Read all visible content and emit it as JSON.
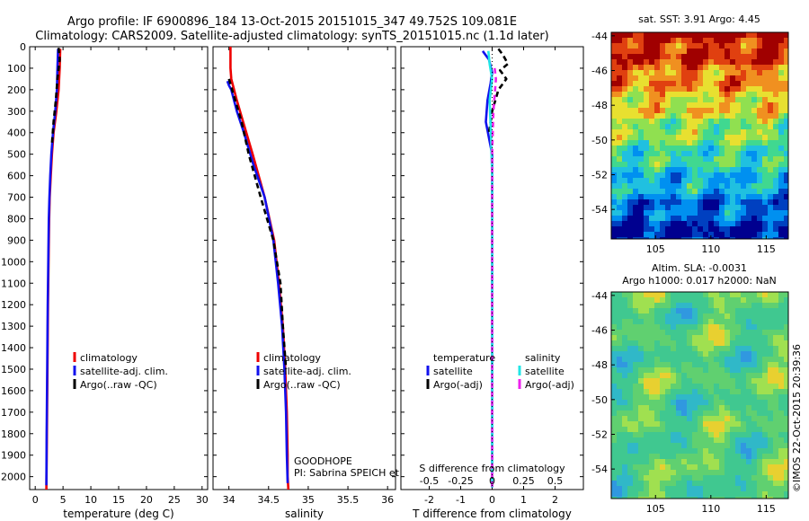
{
  "header": {
    "title_line1": "Argo profile: IF 6900896_184 13-Oct-2015 20151015_347 49.752S 109.081E",
    "title_line2": "Climatology: CARS2009. Satellite-adjusted climatology: synTS_20151015.nc (1.1d later)"
  },
  "colors": {
    "red": "#ee0000",
    "blue": "#1111ee",
    "black": "#000000",
    "cyan": "#22e6e6",
    "magenta": "#ee22ee"
  },
  "chart_data": [
    {
      "id": "temperature",
      "type": "line",
      "xlabel": "temperature (deg C)",
      "ylabel": "",
      "xlim": [
        -1,
        31
      ],
      "ylim": [
        2060,
        0
      ],
      "x_ticks": [
        0,
        5,
        10,
        15,
        20,
        25,
        30
      ],
      "x_tick_labels": [
        "0",
        "5",
        "10",
        "15",
        "20",
        "25",
        "30"
      ],
      "y_ticks": [
        0,
        100,
        200,
        300,
        400,
        500,
        600,
        700,
        800,
        900,
        1000,
        1100,
        1200,
        1300,
        1400,
        1500,
        1600,
        1700,
        1800,
        1900,
        2000
      ],
      "y_tick_labels": [
        "0",
        "100",
        "200",
        "300",
        "400",
        "500",
        "600",
        "700",
        "800",
        "900",
        "1000",
        "1100",
        "1200",
        "1300",
        "1400",
        "1500",
        "1600",
        "1700",
        "1800",
        "1900",
        "2000"
      ],
      "legend": [
        "climatology",
        "satellite-adj. clim.",
        "Argo(..raw -QC)"
      ],
      "series": [
        {
          "name": "climatology",
          "color": "red",
          "dash": "solid",
          "x": [
            4.5,
            4.4,
            4.2,
            3.8,
            3.3,
            3.0,
            2.8,
            2.6,
            2.5,
            2.4,
            2.3,
            2.2,
            2.1,
            2.0
          ],
          "depth": [
            10,
            100,
            200,
            300,
            400,
            500,
            600,
            700,
            800,
            1000,
            1200,
            1500,
            1800,
            2060
          ]
        },
        {
          "name": "satellite-adj. clim.",
          "color": "blue",
          "dash": "solid",
          "x": [
            4.1,
            4.0,
            3.9,
            3.6,
            3.2,
            2.9,
            2.7,
            2.55,
            2.45,
            2.35,
            2.25,
            2.15,
            2.05,
            2.0
          ],
          "depth": [
            10,
            100,
            200,
            300,
            400,
            500,
            600,
            700,
            800,
            1000,
            1200,
            1500,
            1800,
            2040
          ]
        },
        {
          "name": "Argo(..raw -QC)",
          "color": "black",
          "dash": "dashed",
          "x": [
            4.2,
            4.4,
            4.0,
            3.7,
            3.3,
            3.0
          ],
          "depth": [
            5,
            60,
            150,
            250,
            350,
            450
          ]
        }
      ]
    },
    {
      "id": "salinity",
      "type": "line",
      "xlabel": "salinity",
      "ylabel": "",
      "xlim": [
        33.8,
        36.1
      ],
      "ylim": [
        2060,
        0
      ],
      "x_ticks": [
        34,
        34.5,
        35,
        35.5,
        36
      ],
      "x_tick_labels": [
        "34",
        "34.5",
        "35",
        "35.5",
        "36"
      ],
      "legend": [
        "climatology",
        "satellite-adj. clim.",
        "Argo(..raw -QC)"
      ],
      "annotation_line1": "GOODHOPE",
      "annotation_line2": "PI: Sabrina SPEICH et Michel ARHAN",
      "series": [
        {
          "name": "climatology",
          "color": "red",
          "dash": "solid",
          "x": [
            34.02,
            34.02,
            34.03,
            34.1,
            34.18,
            34.3,
            34.45,
            34.57,
            34.63,
            34.68,
            34.71,
            34.73,
            34.74,
            34.74,
            34.75
          ],
          "depth": [
            0,
            100,
            150,
            250,
            350,
            500,
            700,
            900,
            1100,
            1300,
            1500,
            1700,
            1900,
            2000,
            2060
          ]
        },
        {
          "name": "satellite-adj. clim.",
          "color": "blue",
          "dash": "solid",
          "x": [
            33.98,
            34.0,
            34.03,
            34.1,
            34.19,
            34.31,
            34.45,
            34.56,
            34.62,
            34.67,
            34.7,
            34.72,
            34.73,
            34.74
          ],
          "depth": [
            160,
            180,
            200,
            300,
            400,
            550,
            700,
            900,
            1100,
            1300,
            1500,
            1700,
            1900,
            2030
          ]
        },
        {
          "name": "Argo(..raw -QC)",
          "color": "black",
          "dash": "dashed",
          "x": [
            34.0,
            34.08,
            34.16,
            34.25,
            34.4,
            34.56,
            34.65,
            34.68,
            34.72
          ],
          "depth": [
            150,
            250,
            350,
            500,
            700,
            900,
            1100,
            1300,
            1500
          ]
        }
      ]
    },
    {
      "id": "difference",
      "type": "line",
      "xlabel": "T difference from climatology",
      "x2label": "S difference from climatology",
      "xlim": [
        -2.9,
        2.9
      ],
      "ylim": [
        2060,
        0
      ],
      "x_ticks": [
        -2,
        -1,
        0,
        1,
        2
      ],
      "x_tick_labels": [
        "-2",
        "-1",
        "0",
        "1",
        "2"
      ],
      "x2_ticks": [
        -0.5,
        -0.25,
        0,
        0.25,
        0.5
      ],
      "x2_tick_labels": [
        "-0.5",
        "-0.25",
        "0",
        "0.25",
        "0.5"
      ],
      "x2_scale": 4,
      "legend_headers": [
        "temperature",
        "salinity"
      ],
      "legend": [
        "satellite",
        "Argo(-adj)",
        "satellite",
        "Argo(-adj)"
      ],
      "series": [
        {
          "name": "temperature satellite",
          "color": "blue",
          "dash": "solid",
          "x": [
            -0.3,
            -0.1,
            0.0,
            -0.05,
            -0.15,
            -0.2,
            0.0,
            0.0,
            0.0,
            0.0,
            0.0,
            0.0
          ],
          "depth": [
            20,
            60,
            120,
            170,
            250,
            350,
            500,
            700,
            1000,
            1400,
            1800,
            2050
          ]
        },
        {
          "name": "temperature Argo(-adj)",
          "color": "black",
          "dash": "dashed",
          "x": [
            0.2,
            0.35,
            0.5,
            0.25,
            0.45,
            0.2,
            0.0,
            -0.1
          ],
          "depth": [
            10,
            40,
            80,
            110,
            150,
            200,
            300,
            400
          ]
        },
        {
          "name": "salinity satellite",
          "color": "cyan",
          "dash": "solid",
          "x": [
            -0.03,
            -0.02,
            0.0,
            -0.02,
            -0.01,
            0.0,
            0.0,
            0.0,
            0.0,
            0.0
          ],
          "depth": [
            20,
            80,
            150,
            250,
            400,
            600,
            900,
            1300,
            1700,
            2050
          ]
        },
        {
          "name": "salinity Argo(-adj)",
          "color": "magenta",
          "dash": "dashed",
          "x": [
            0.02,
            0.03,
            0.01,
            0.0,
            0.0,
            0.0,
            0.0
          ],
          "depth": [
            100,
            150,
            300,
            500,
            900,
            1500,
            2050
          ]
        }
      ]
    },
    {
      "id": "sst_map",
      "type": "heatmap",
      "title": "sat. SST: 3.91 Argo: 4.45",
      "xlim": [
        101,
        117
      ],
      "ylim": [
        -55.7,
        -43.8
      ],
      "x_ticks": [
        105,
        110,
        115
      ],
      "x_tick_labels": [
        "105",
        "110",
        "115"
      ],
      "y_ticks": [
        -44,
        -46,
        -48,
        -50,
        -52,
        -54
      ],
      "y_tick_labels": [
        "-44",
        "-46",
        "-48",
        "-50",
        "-52",
        "-54"
      ],
      "palette": [
        "#00008f",
        "#0040c0",
        "#0090f0",
        "#20c0e0",
        "#40d890",
        "#90e050",
        "#e8e030",
        "#f09020",
        "#e04010",
        "#a00000"
      ]
    },
    {
      "id": "sla_map",
      "type": "heatmap",
      "title_line1": "Altim. SLA: -0.0031",
      "title_line2": "Argo h1000: 0.017 h2000: NaN",
      "xlim": [
        101,
        117
      ],
      "ylim": [
        -55.7,
        -43.8
      ],
      "x_ticks": [
        105,
        110,
        115
      ],
      "x_tick_labels": [
        "105",
        "110",
        "115"
      ],
      "y_ticks": [
        -44,
        -46,
        -48,
        -50,
        -52,
        -54
      ],
      "y_tick_labels": [
        "-44",
        "-46",
        "-48",
        "-50",
        "-52",
        "-54"
      ]
    }
  ],
  "footer": {
    "watermark": "©IMOS 22-Oct-2015 20:39:36"
  }
}
